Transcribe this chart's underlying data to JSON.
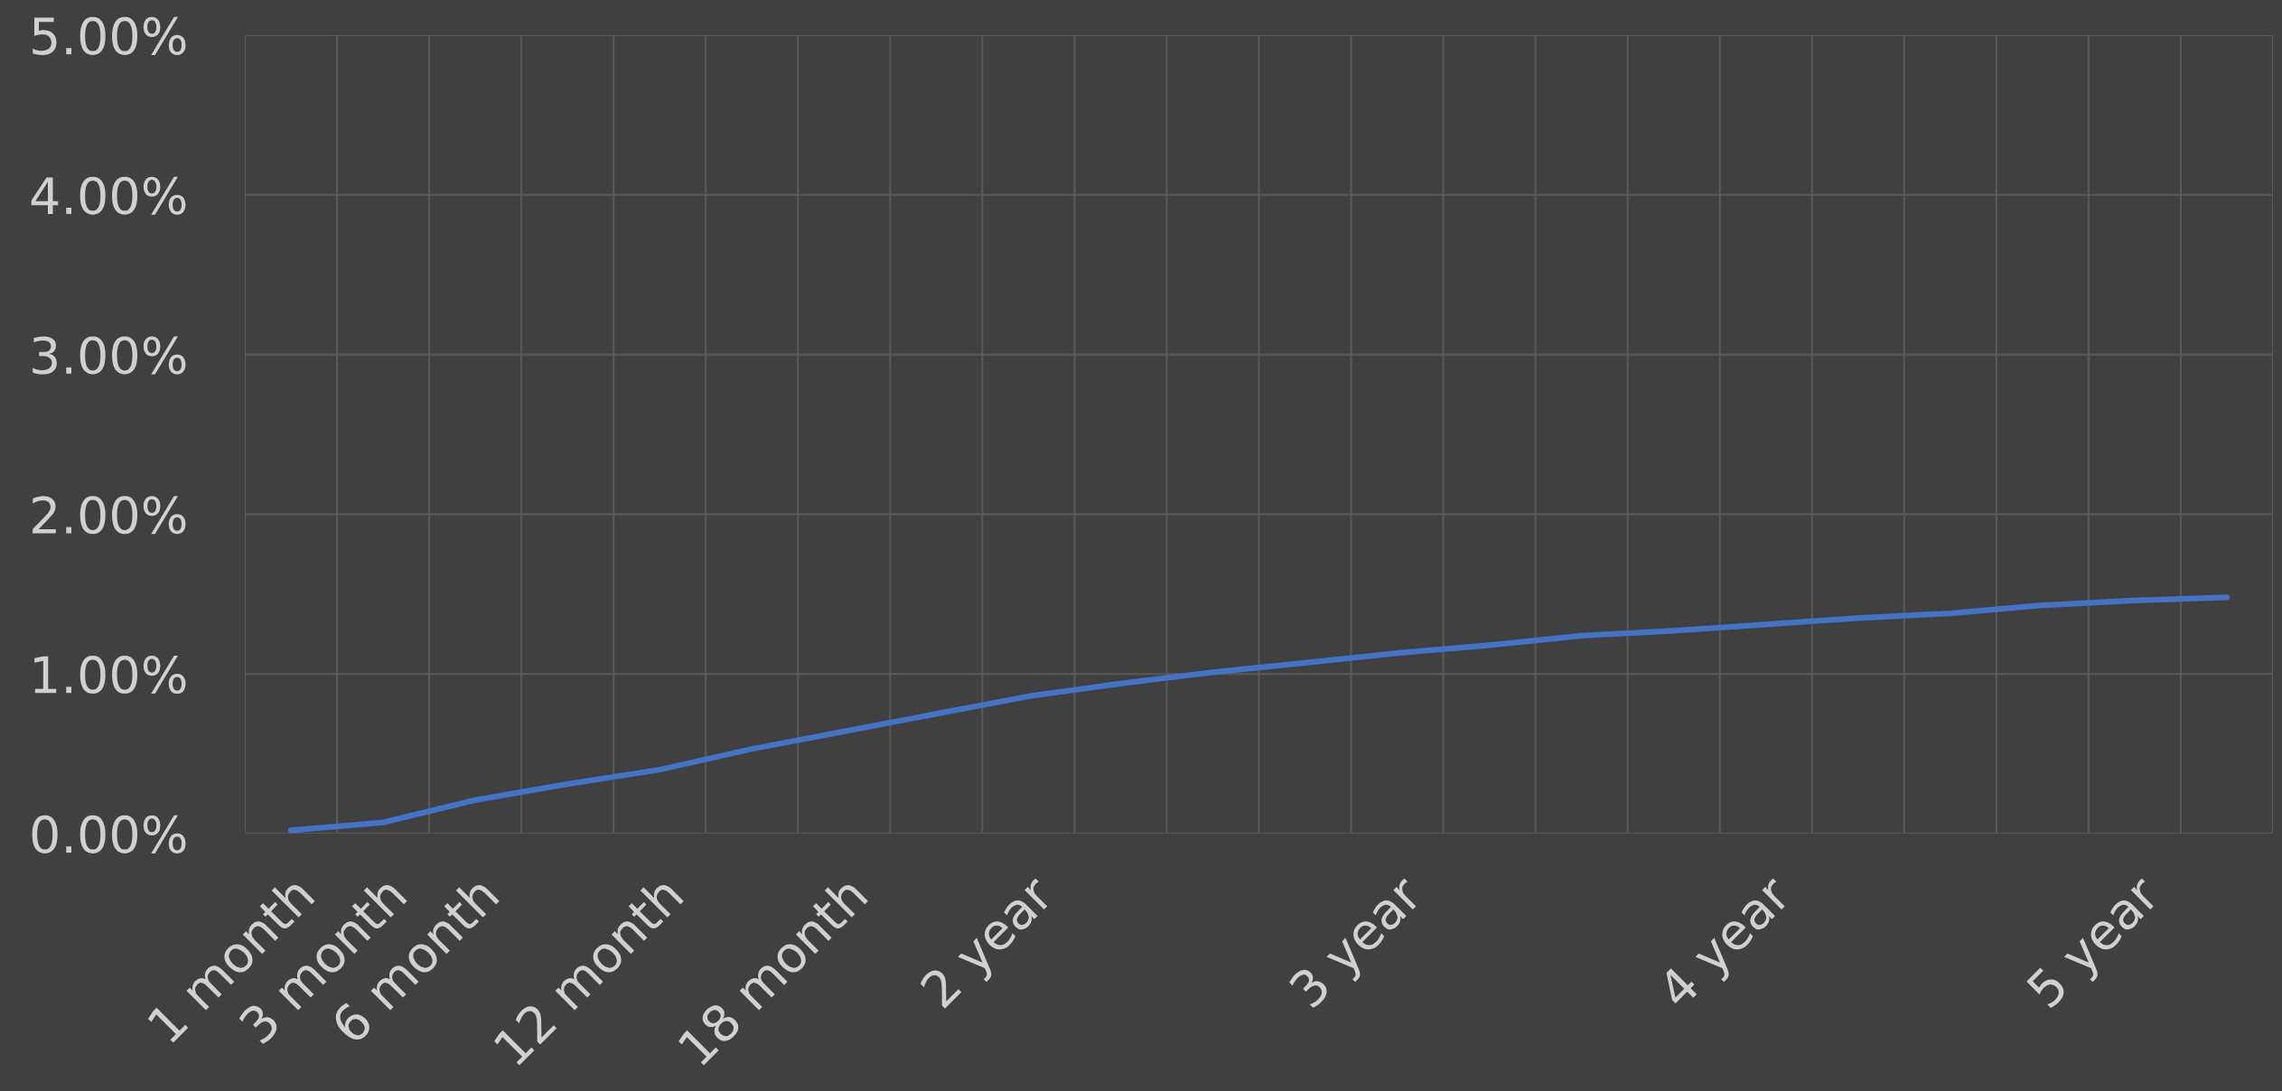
{
  "chart_data": {
    "type": "line",
    "categories": [
      "1 month",
      "3 month",
      "6 month",
      null,
      "12 month",
      null,
      "18 month",
      null,
      "2 year",
      null,
      null,
      null,
      "3 year",
      null,
      null,
      null,
      "4 year",
      null,
      null,
      null,
      "5 year",
      null
    ],
    "series": [
      {
        "color": "#4472c4",
        "values": [
          0.02,
          0.07,
          0.21,
          0.31,
          0.4,
          0.53,
          0.64,
          0.75,
          0.86,
          0.94,
          1.01,
          1.07,
          1.13,
          1.18,
          1.24,
          1.27,
          1.31,
          1.35,
          1.38,
          1.43,
          1.46,
          1.48
        ]
      }
    ],
    "ylim": [
      0,
      5
    ],
    "yticks": [
      {
        "value": 0,
        "label": "0.00%"
      },
      {
        "value": 1,
        "label": "1.00%"
      },
      {
        "value": 2,
        "label": "2.00%"
      },
      {
        "value": 3,
        "label": "3.00%"
      },
      {
        "value": 4,
        "label": "4.00%"
      },
      {
        "value": 5,
        "label": "5.00%"
      }
    ],
    "grid": true,
    "legend": false,
    "marker": "none",
    "line_style": "solid"
  }
}
